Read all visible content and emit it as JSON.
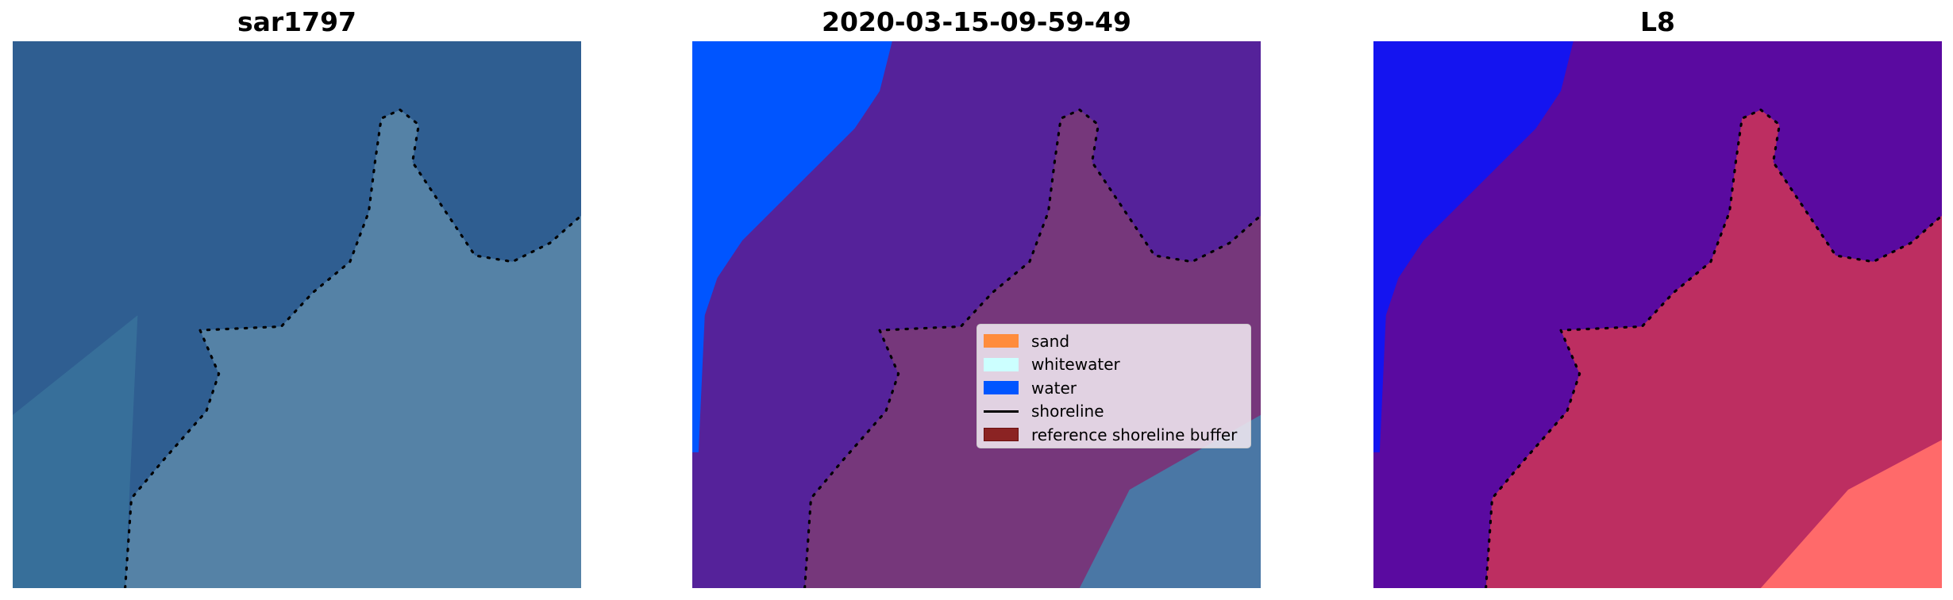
{
  "panels": [
    {
      "title": "sar1797",
      "colors": {
        "water": "#2f5e91",
        "land": "#5a86a8"
      }
    },
    {
      "title": "2020-03-15-09-59-49",
      "colors": {
        "water_class": "#0055ff",
        "sea": "#55229a",
        "land": "#7a3a78"
      }
    },
    {
      "title": "L8",
      "colors": {
        "water_class": "#1414f0",
        "sea": "#5a0aa0",
        "land": "#c8325a"
      }
    }
  ],
  "legend": {
    "items": [
      {
        "label": "sand",
        "color": "#ff8c3c",
        "kind": "patch"
      },
      {
        "label": "whitewater",
        "color": "#ccffff",
        "kind": "patch"
      },
      {
        "label": "water",
        "color": "#0055ff",
        "kind": "patch"
      },
      {
        "label": "shoreline",
        "color": "#000000",
        "kind": "line"
      },
      {
        "label": "reference shoreline buffer",
        "color": "#8b2323",
        "kind": "patch"
      }
    ]
  }
}
